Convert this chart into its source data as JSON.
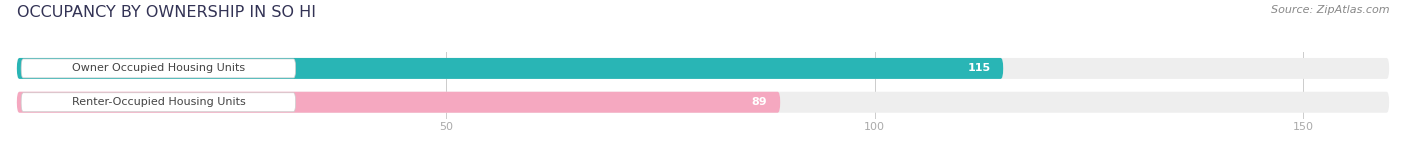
{
  "title": "OCCUPANCY BY OWNERSHIP IN SO HI",
  "source": "Source: ZipAtlas.com",
  "categories": [
    "Owner Occupied Housing Units",
    "Renter-Occupied Housing Units"
  ],
  "values": [
    115,
    89
  ],
  "bar_colors": [
    "#29b5b5",
    "#f5a8c0"
  ],
  "bar_bg_color": "#eeeeee",
  "label_bg_color": "#ffffff",
  "label_text_color": "#444444",
  "value_text_color": "#ffffff",
  "xlim": [
    0,
    160
  ],
  "xticks": [
    50,
    100,
    150
  ],
  "bar_height": 0.62,
  "title_fontsize": 11.5,
  "label_fontsize": 8.0,
  "value_fontsize": 8.0,
  "source_fontsize": 8.0,
  "tick_fontsize": 8.0,
  "background_color": "#ffffff",
  "grid_color": "#cccccc",
  "tick_color": "#aaaaaa"
}
